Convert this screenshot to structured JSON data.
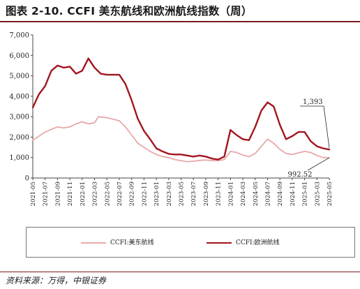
{
  "title": "图表 2-10. CCFI 美东航线和欧洲航线指数（周）",
  "source": "资料来源：万得，中银证券",
  "colors": {
    "us_east": "#e8a8a8",
    "europe": "#a3151f",
    "accent": "#7a1a22"
  },
  "chart_data": {
    "type": "line",
    "title": "",
    "xlabel": "",
    "ylabel": "",
    "ylim": [
      0,
      7000
    ],
    "yticks": [
      0,
      1000,
      2000,
      3000,
      4000,
      5000,
      6000,
      7000
    ],
    "ytick_labels": [
      "0",
      "1,000",
      "2,000",
      "3,000",
      "4,000",
      "5,000",
      "6,000",
      "7,000"
    ],
    "xlim": [
      "2021-05",
      "2025-05"
    ],
    "xtick_labels": [
      "2021-05",
      "2021-07",
      "2021-09",
      "2021-11",
      "2022-01",
      "2022-03",
      "2022-05",
      "2022-07",
      "2022-09",
      "2022-11",
      "2023-01",
      "2023-03",
      "2023-05",
      "2023-07",
      "2023-09",
      "2023-11",
      "2024-01",
      "2024-03",
      "2024-05",
      "2024-07",
      "2024-09",
      "2024-11",
      "2025-01",
      "2025-03",
      "2025-05"
    ],
    "grid": false,
    "legend_position": "bottom",
    "annotations": [
      {
        "text": "1,393",
        "series": "CCFI:欧洲航线",
        "x": "2025-05",
        "y": 1393
      },
      {
        "text": "992.52",
        "series": "CCFI:美东航线",
        "x": "2025-05",
        "y": 992.52
      }
    ],
    "series": [
      {
        "name": "CCFI:美东航线",
        "color": "#e8a8a8",
        "points": [
          [
            "2021-05",
            1850
          ],
          [
            "2021-06",
            2050
          ],
          [
            "2021-07",
            2250
          ],
          [
            "2021-08",
            2380
          ],
          [
            "2021-09",
            2500
          ],
          [
            "2021-10",
            2450
          ],
          [
            "2021-11",
            2500
          ],
          [
            "2021-12",
            2650
          ],
          [
            "2022-01",
            2750
          ],
          [
            "2022-02",
            2650
          ],
          [
            "2022-03",
            2700
          ],
          [
            "2022-03-20",
            3000
          ],
          [
            "2022-04",
            2980
          ],
          [
            "2022-05",
            2950
          ],
          [
            "2022-06",
            2880
          ],
          [
            "2022-07",
            2800
          ],
          [
            "2022-08",
            2500
          ],
          [
            "2022-09",
            2100
          ],
          [
            "2022-10",
            1700
          ],
          [
            "2022-11",
            1500
          ],
          [
            "2022-12",
            1300
          ],
          [
            "2023-01",
            1150
          ],
          [
            "2023-02",
            1050
          ],
          [
            "2023-03",
            1000
          ],
          [
            "2023-04",
            900
          ],
          [
            "2023-05",
            850
          ],
          [
            "2023-06",
            800
          ],
          [
            "2023-07",
            820
          ],
          [
            "2023-08",
            860
          ],
          [
            "2023-09",
            880
          ],
          [
            "2023-10",
            850
          ],
          [
            "2023-11",
            850
          ],
          [
            "2023-12",
            900
          ],
          [
            "2024-01",
            1300
          ],
          [
            "2024-02",
            1250
          ],
          [
            "2024-03",
            1120
          ],
          [
            "2024-04",
            1050
          ],
          [
            "2024-05",
            1200
          ],
          [
            "2024-06",
            1550
          ],
          [
            "2024-07",
            1900
          ],
          [
            "2024-08",
            1700
          ],
          [
            "2024-09",
            1400
          ],
          [
            "2024-10",
            1200
          ],
          [
            "2024-11",
            1150
          ],
          [
            "2024-12",
            1230
          ],
          [
            "2025-01",
            1300
          ],
          [
            "2025-02",
            1250
          ],
          [
            "2025-03",
            1100
          ],
          [
            "2025-04",
            1000
          ],
          [
            "2025-05",
            992.52
          ]
        ]
      },
      {
        "name": "CCFI:欧洲航线",
        "color": "#a3151f",
        "points": [
          [
            "2021-05",
            3450
          ],
          [
            "2021-06",
            4100
          ],
          [
            "2021-07",
            4500
          ],
          [
            "2021-08",
            5250
          ],
          [
            "2021-09",
            5500
          ],
          [
            "2021-10",
            5400
          ],
          [
            "2021-11",
            5450
          ],
          [
            "2021-12",
            5100
          ],
          [
            "2022-01",
            5250
          ],
          [
            "2022-02",
            5850
          ],
          [
            "2022-03",
            5400
          ],
          [
            "2022-04",
            5100
          ],
          [
            "2022-05",
            5050
          ],
          [
            "2022-06",
            5050
          ],
          [
            "2022-07",
            5050
          ],
          [
            "2022-08",
            4600
          ],
          [
            "2022-09",
            3800
          ],
          [
            "2022-10",
            2900
          ],
          [
            "2022-11",
            2300
          ],
          [
            "2022-12",
            1900
          ],
          [
            "2023-01",
            1450
          ],
          [
            "2023-02",
            1300
          ],
          [
            "2023-03",
            1180
          ],
          [
            "2023-04",
            1150
          ],
          [
            "2023-05",
            1150
          ],
          [
            "2023-06",
            1100
          ],
          [
            "2023-07",
            1050
          ],
          [
            "2023-08",
            1100
          ],
          [
            "2023-09",
            1050
          ],
          [
            "2023-10",
            950
          ],
          [
            "2023-11",
            900
          ],
          [
            "2023-12",
            1050
          ],
          [
            "2024-01",
            2350
          ],
          [
            "2024-02",
            2100
          ],
          [
            "2024-03",
            1900
          ],
          [
            "2024-04",
            1850
          ],
          [
            "2024-05",
            2500
          ],
          [
            "2024-06",
            3300
          ],
          [
            "2024-07",
            3700
          ],
          [
            "2024-08",
            3500
          ],
          [
            "2024-09",
            2600
          ],
          [
            "2024-10",
            1900
          ],
          [
            "2024-11",
            2050
          ],
          [
            "2024-12",
            2250
          ],
          [
            "2025-01",
            2250
          ],
          [
            "2025-02",
            1800
          ],
          [
            "2025-03",
            1550
          ],
          [
            "2025-04",
            1450
          ],
          [
            "2025-05",
            1393
          ]
        ]
      }
    ]
  }
}
